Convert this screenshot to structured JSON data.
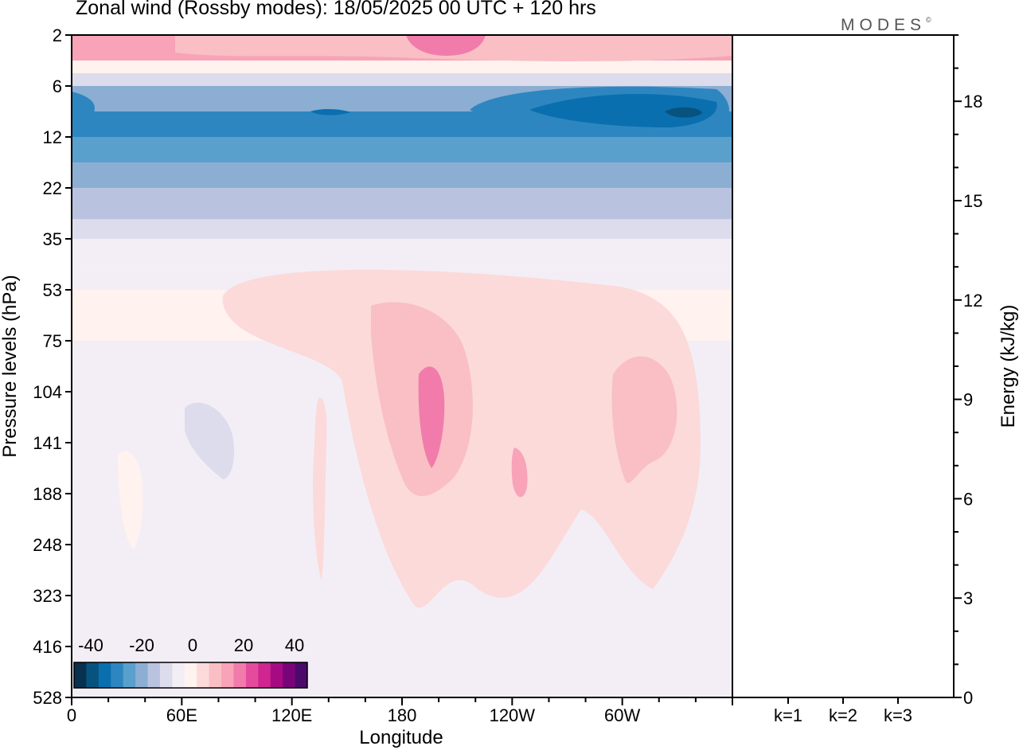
{
  "brand": "MODES",
  "brand_mark": "©",
  "chart_data": [
    {
      "type": "heatmap",
      "title": "Zonal wind (Rossby modes):  18/05/2025  00 UTC  + 120 hrs",
      "xlabel": "Longitude",
      "ylabel": "Pressure levels (hPa)",
      "x_ticks": [
        "0",
        "60E",
        "120E",
        "180",
        "120W",
        "60W"
      ],
      "y_ticks": [
        2,
        6,
        12,
        22,
        35,
        53,
        75,
        104,
        141,
        188,
        248,
        323,
        416,
        528
      ],
      "y_reversed": true,
      "colorbar": {
        "labels": [
          "-40",
          "-20",
          "0",
          "20",
          "40"
        ],
        "colors": [
          "#08304f",
          "#08527f",
          "#0a6fae",
          "#2e86c0",
          "#5aa0cd",
          "#8caed3",
          "#b9c3e0",
          "#dcdcec",
          "#f3eef6",
          "#fff2ef",
          "#fcdada",
          "#f9bfc4",
          "#f8a3b7",
          "#f17cab",
          "#e54b9d",
          "#cf2690",
          "#a70b83",
          "#79047a",
          "#4b0a6b"
        ]
      },
      "bands": [
        {
          "level_hPa": 2,
          "u": 15
        },
        {
          "level_hPa": 4,
          "u": 4
        },
        {
          "level_hPa": 5,
          "u": -8
        },
        {
          "level_hPa": 6,
          "u": -20
        },
        {
          "level_hPa": 9,
          "u": -30
        },
        {
          "level_hPa": 12,
          "u": -26
        },
        {
          "level_hPa": 17,
          "u": -22
        },
        {
          "level_hPa": 22,
          "u": -17
        },
        {
          "level_hPa": 30,
          "u": -12
        },
        {
          "level_hPa": 35,
          "u": -7
        },
        {
          "level_hPa": 45,
          "u": -3
        },
        {
          "level_hPa": 53,
          "u": 1
        },
        {
          "level_hPa": 75,
          "u": -1
        },
        {
          "level_hPa": 528,
          "u": -1
        }
      ]
    },
    {
      "type": "bar",
      "ylabel": "Energy (kJ/kg)",
      "categories": [
        "k=1",
        "k=2",
        "k=3"
      ],
      "values": [
        0.02,
        0.02,
        0.02
      ],
      "ylim": [
        0,
        20
      ],
      "y_ticks": [
        0,
        3,
        6,
        9,
        12,
        15,
        18
      ]
    }
  ]
}
